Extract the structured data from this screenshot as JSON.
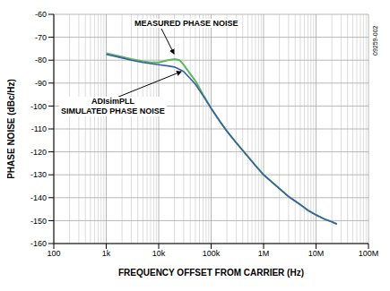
{
  "chart_data": {
    "type": "line",
    "x_label": "FREQUENCY OFFSET FROM CARRIER (Hz)",
    "y_label": "PHASE NOISE (dBc/Hz)",
    "log": "x",
    "grid": true,
    "x": [
      1000,
      2000,
      3000,
      5000,
      7000,
      10000,
      15000,
      20000,
      25000,
      30000,
      40000,
      50000,
      70000,
      100000,
      150000,
      200000,
      300000,
      500000,
      700000,
      1000000,
      2000000,
      3000000,
      5000000,
      7000000,
      10000000,
      15000000,
      20000000,
      25000000
    ],
    "series": [
      {
        "name": "MEASURED PHASE NOISE",
        "color": "#5cb85c",
        "values": [
          -77,
          -78.5,
          -79.5,
          -80.5,
          -81,
          -81,
          -80,
          -79.5,
          -80,
          -82,
          -86,
          -89,
          -95,
          -101,
          -107,
          -111,
          -116,
          -122,
          -126,
          -130,
          -136,
          -139.5,
          -143,
          -145.5,
          -147.5,
          -149.5,
          -150.5,
          -151.5
        ]
      },
      {
        "name": "ADIsimPLL SIMULATED PHASE NOISE",
        "color": "#3a5fa8",
        "values": [
          -77.5,
          -79,
          -80,
          -81,
          -81.5,
          -82,
          -82.5,
          -83,
          -84,
          -85,
          -88,
          -90.5,
          -95.5,
          -101,
          -107,
          -111,
          -116,
          -122,
          -126,
          -130,
          -136,
          -139.5,
          -143,
          -145.5,
          -147.5,
          -149.5,
          -150.5,
          -151.5
        ]
      }
    ],
    "xlim": [
      100,
      100000000
    ],
    "xticks": [
      100,
      {
        "value": 1000,
        "label": "1k"
      },
      {
        "value": 10000,
        "label": "10k"
      },
      {
        "value": 100000,
        "label": "100k"
      },
      {
        "value": 1000000,
        "label": "1M"
      },
      {
        "value": 10000000,
        "label": "10M"
      },
      {
        "value": 100000000,
        "label": "100M"
      }
    ],
    "ylim": [
      -160,
      -60
    ],
    "yticks": [
      -160,
      -150,
      -140,
      -130,
      -120,
      -110,
      -100,
      -90,
      -80,
      -70,
      -60
    ],
    "annotations": [
      "MEASURED PHASE NOISE",
      "ADIsimPLL\nSIMULATED PHASE NOISE",
      "09259-002"
    ]
  }
}
